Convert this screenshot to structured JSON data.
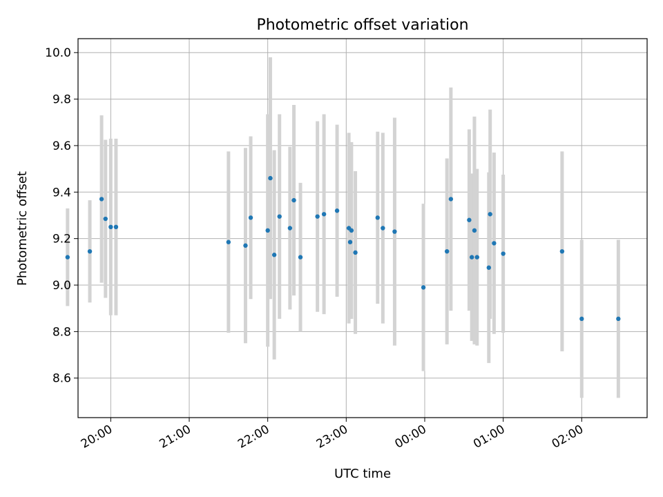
{
  "chart_data": {
    "type": "scatter",
    "title": "Photometric offset variation",
    "xlabel": "UTC time",
    "ylabel": "Photometric offset",
    "grid": true,
    "xlim": [
      "19:35",
      "02:50"
    ],
    "ylim": [
      8.43,
      10.06
    ],
    "x_ticks": [
      "20:00",
      "21:00",
      "22:00",
      "23:00",
      "00:00",
      "01:00",
      "02:00"
    ],
    "y_ticks": [
      "8.6",
      "8.8",
      "9.0",
      "9.2",
      "9.4",
      "9.6",
      "9.8",
      "10.0"
    ],
    "point_color": "#1f77b4",
    "errorbar_color": "#d3d3d3",
    "x": [
      "19:27",
      "19:44",
      "19:53",
      "19:56",
      "20:00",
      "20:04",
      "21:30",
      "21:43",
      "21:47",
      "22:00",
      "22:02",
      "22:05",
      "22:09",
      "22:17",
      "22:20",
      "22:25",
      "22:38",
      "22:43",
      "22:53",
      "23:02",
      "23:03",
      "23:04",
      "23:07",
      "23:24",
      "23:28",
      "23:37",
      "23:59",
      "00:17",
      "00:20",
      "00:34",
      "00:36",
      "00:38",
      "00:40",
      "00:49",
      "00:50",
      "00:53",
      "01:00",
      "01:45",
      "02:00",
      "02:28"
    ],
    "y": [
      9.12,
      9.145,
      9.37,
      9.285,
      9.25,
      9.25,
      9.185,
      9.17,
      9.29,
      9.235,
      9.46,
      9.13,
      9.295,
      9.245,
      9.365,
      9.12,
      9.295,
      9.305,
      9.32,
      9.245,
      9.185,
      9.235,
      9.14,
      9.29,
      9.245,
      9.23,
      8.99,
      9.145,
      9.37,
      9.28,
      9.12,
      9.235,
      9.12,
      9.075,
      9.305,
      9.18,
      9.135,
      9.145,
      8.855,
      8.855
    ],
    "yerr": [
      0.21,
      0.22,
      0.36,
      0.34,
      0.38,
      0.38,
      0.39,
      0.42,
      0.35,
      0.5,
      0.52,
      0.45,
      0.44,
      0.35,
      0.41,
      0.32,
      0.41,
      0.43,
      0.37,
      0.41,
      0.33,
      0.38,
      0.35,
      0.37,
      0.41,
      0.49,
      0.36,
      0.4,
      0.48,
      0.39,
      0.36,
      0.49,
      0.38,
      0.41,
      0.45,
      0.39,
      0.34,
      0.43,
      0.34,
      0.34
    ]
  }
}
